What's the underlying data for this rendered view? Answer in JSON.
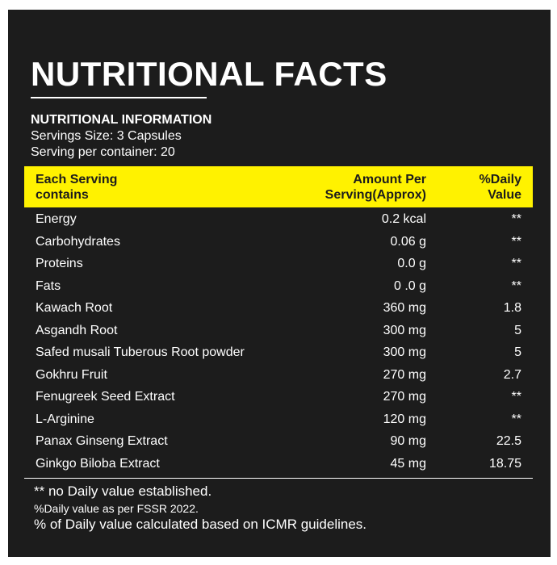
{
  "title": "NUTRITIONAL FACTS",
  "info": {
    "heading": "NUTRITIONAL INFORMATION",
    "lines": [
      "Servings Size: 3 Capsules",
      "Serving per container: 20"
    ]
  },
  "table": {
    "header": [
      "Each Serving contains",
      "Amount Per Serving(Approx)",
      "%Daily Value"
    ],
    "rows": [
      [
        "Energy",
        "0.2 kcal",
        "**"
      ],
      [
        "Carbohydrates",
        "0.06 g",
        "**"
      ],
      [
        "Proteins",
        "0.0 g",
        "**"
      ],
      [
        "Fats",
        "0 .0 g",
        "**"
      ],
      [
        "Kawach Root",
        "360 mg",
        "1.8"
      ],
      [
        "Asgandh Root",
        "300 mg",
        "5"
      ],
      [
        "Safed musali Tuberous Root powder",
        "300 mg",
        "5"
      ],
      [
        "Gokhru Fruit",
        "270 mg",
        "2.7"
      ],
      [
        "Fenugreek Seed Extract",
        "270 mg",
        "**"
      ],
      [
        "L-Arginine",
        "120 mg",
        "**"
      ],
      [
        "Panax Ginseng Extract",
        "90 mg",
        "22.5"
      ],
      [
        "Ginkgo Biloba Extract",
        "45 mg",
        "18.75"
      ]
    ]
  },
  "notes": [
    "** no Daily value established.",
    "%Daily value as per FSSR 2022.",
    "% of Daily value calculated based on ICMR guidelines."
  ]
}
